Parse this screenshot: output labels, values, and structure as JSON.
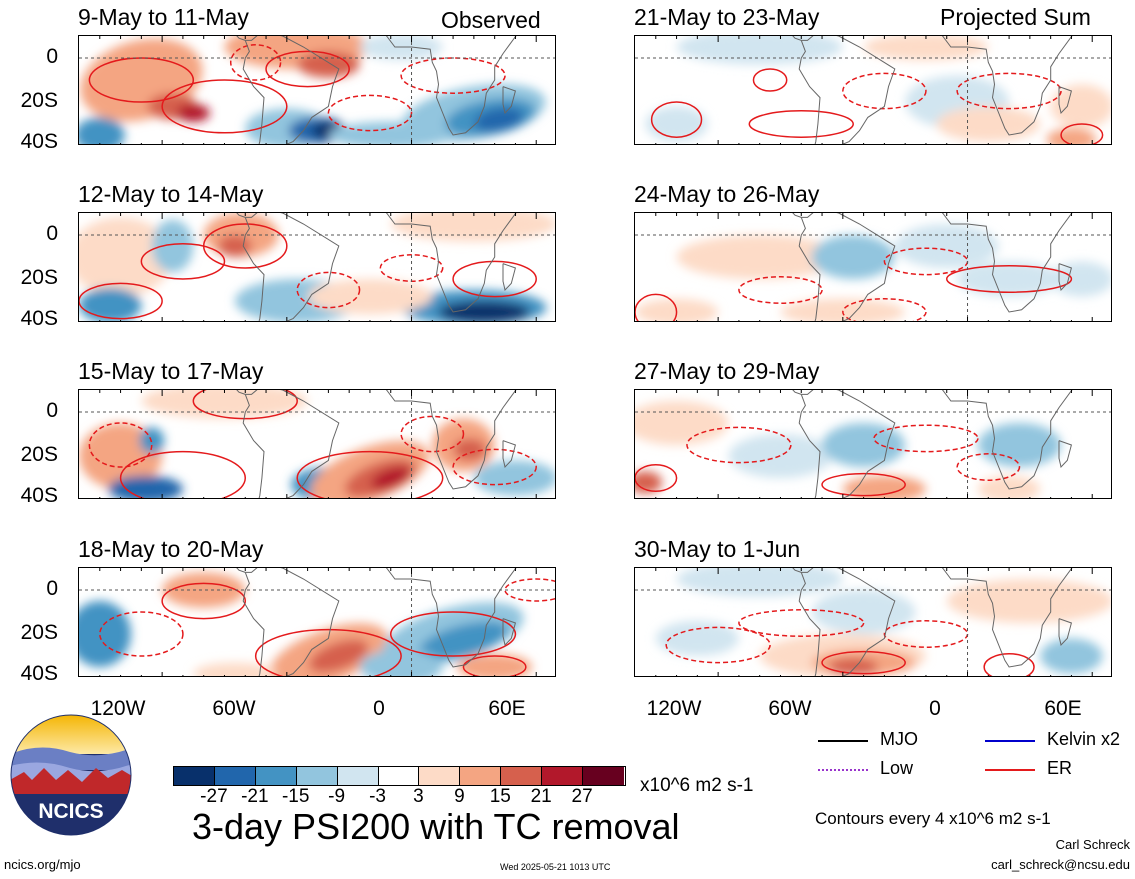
{
  "header": {
    "observed_label": "Observed",
    "projected_label": "Projected Sum"
  },
  "panels": [
    {
      "id": "p1",
      "date_range": "9-May to 11-May",
      "column": "observed"
    },
    {
      "id": "p2",
      "date_range": "12-May to 14-May",
      "column": "observed"
    },
    {
      "id": "p3",
      "date_range": "15-May to 17-May",
      "column": "observed"
    },
    {
      "id": "p4",
      "date_range": "18-May to 20-May",
      "column": "observed"
    },
    {
      "id": "p5",
      "date_range": "21-May to 23-May",
      "column": "projected"
    },
    {
      "id": "p6",
      "date_range": "24-May to 26-May",
      "column": "projected"
    },
    {
      "id": "p7",
      "date_range": "27-May to 29-May",
      "column": "projected"
    },
    {
      "id": "p8",
      "date_range": "30-May to 1-Jun",
      "column": "projected"
    }
  ],
  "axes": {
    "lat_labels": [
      "0",
      "20S",
      "40S"
    ],
    "lon_labels": [
      "120W",
      "60W",
      "0",
      "60E"
    ]
  },
  "colorbar": {
    "tick_labels": [
      "-27",
      "-21",
      "-15",
      "-9",
      "-3",
      "3",
      "9",
      "15",
      "21",
      "27"
    ],
    "units": "x10^6 m2 s-1",
    "colors": [
      "#08306b",
      "#2166ac",
      "#4393c3",
      "#92c5de",
      "#d1e5f0",
      "#ffffff",
      "#fddbc7",
      "#f4a582",
      "#d6604d",
      "#b2182b",
      "#67001f"
    ]
  },
  "title": "3-day PSI200 with TC removal",
  "legend": {
    "items": [
      {
        "label": "MJO",
        "color": "#000000"
      },
      {
        "label": "Kelvin x2",
        "color": "#0000cc"
      },
      {
        "label": "Low",
        "color": "#9933cc"
      },
      {
        "label": "ER",
        "color": "#e41a1c"
      }
    ],
    "contour_note": "Contours every 4 x10^6 m2 s-1"
  },
  "footer": {
    "author": "Carl Schreck",
    "email": "carl_schreck@ncsu.edu",
    "website": "ncics.org/mjo",
    "timestamp": "Wed 2025-05-21 1013 UTC",
    "logo_text": "NCICS"
  }
}
